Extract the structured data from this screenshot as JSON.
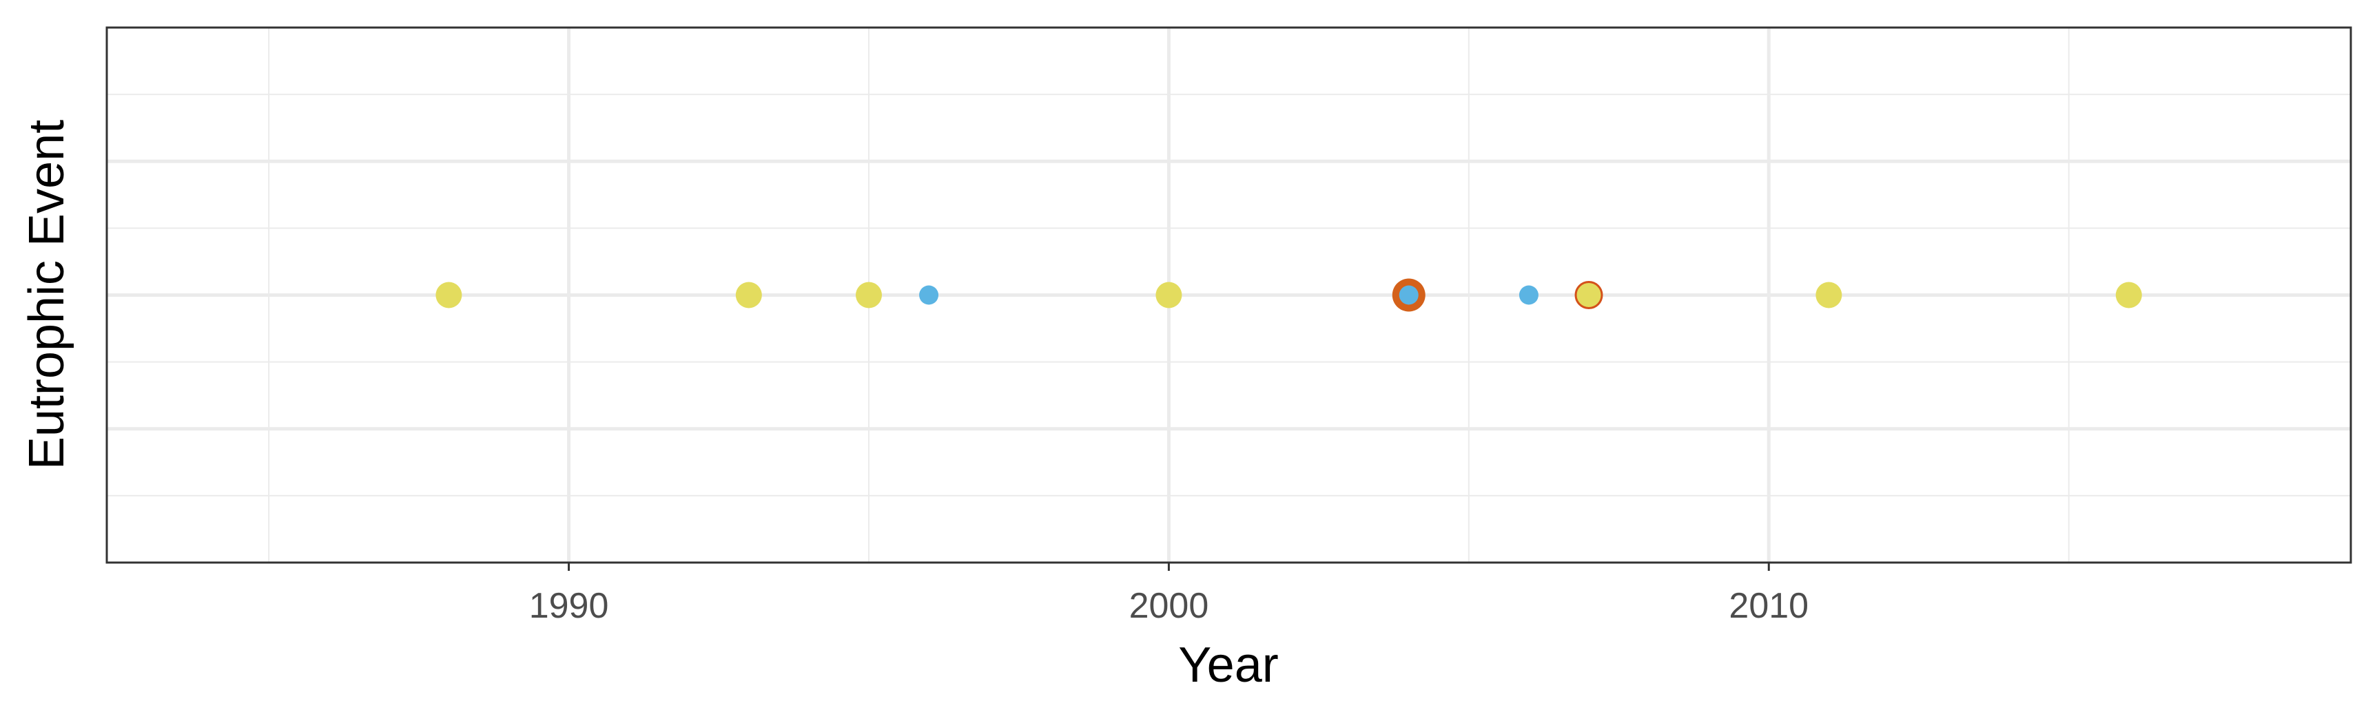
{
  "chart_data": {
    "type": "scatter",
    "title": "",
    "xlabel": "Year",
    "ylabel": "Eutrophic Event",
    "xlim": [
      1982.3,
      2019.7
    ],
    "ylim": [
      0,
      4
    ],
    "x_ticks": [
      1990,
      2000,
      2010
    ],
    "x_tick_labels": [
      "1990",
      "2000",
      "2010"
    ],
    "x_minor_ticks": [
      1985,
      1995,
      2005,
      2015
    ],
    "y_gridlines": [
      1,
      2,
      3
    ],
    "y_minor_gridlines": [
      0.5,
      1.5,
      2.5,
      3.5
    ],
    "grid": true,
    "legend": "none",
    "series": [
      {
        "color": "#E3DC5E",
        "points": [
          {
            "x": 1988,
            "y": 2
          },
          {
            "x": 1993,
            "y": 2
          },
          {
            "x": 1995,
            "y": 2
          },
          {
            "x": 2000,
            "y": 2
          },
          {
            "x": 2011,
            "y": 2
          },
          {
            "x": 2016,
            "y": 2
          }
        ]
      },
      {
        "color": "#E3DC5E",
        "stroke": "#D4511A",
        "points": [
          {
            "x": 2007,
            "y": 2
          }
        ]
      },
      {
        "color": "#D4611A",
        "points": [
          {
            "x": 2004,
            "y": 2
          }
        ]
      },
      {
        "color": "#5BB4E3",
        "points": [
          {
            "x": 1996,
            "y": 2
          },
          {
            "x": 2004,
            "y": 2
          },
          {
            "x": 2006,
            "y": 2
          }
        ]
      }
    ]
  }
}
